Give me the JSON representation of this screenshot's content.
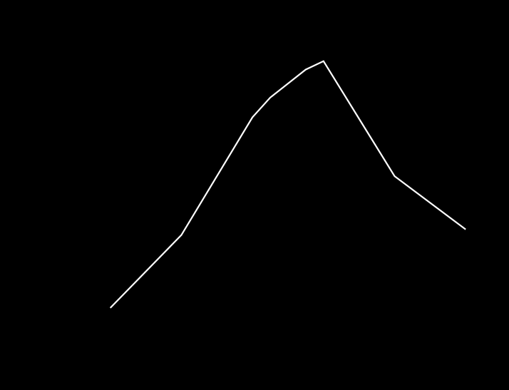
{
  "chart_data": {
    "type": "line",
    "x": [
      1,
      2,
      3,
      3.25,
      3.75,
      4,
      5,
      6
    ],
    "series": [
      {
        "values": [
          0.7,
          2.0,
          4.1,
          4.45,
          4.95,
          5.1,
          3.05,
          2.1
        ]
      }
    ],
    "xlim": [
      0,
      6.5
    ],
    "ylim": [
      0,
      6
    ],
    "grid": false,
    "axes_visible": false,
    "markers_visible": false,
    "colors": {
      "background": "#000000",
      "line": "#ffffff"
    }
  }
}
